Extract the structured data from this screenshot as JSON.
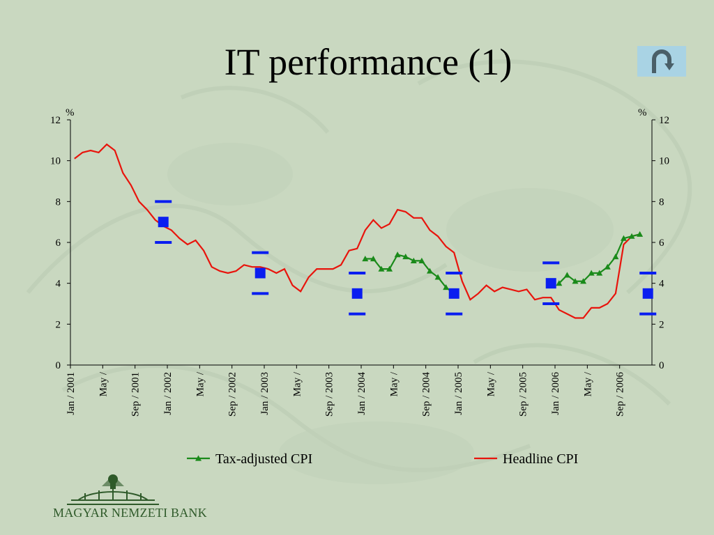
{
  "slide": {
    "title": "IT performance (1)",
    "back_icon": "u-turn-arrow-icon",
    "bank_name": "MAGYAR NEMZETI BANK",
    "background_color": "#c9d8c0",
    "button_color": "#a9d3e4"
  },
  "chart_data": {
    "type": "line",
    "title": "",
    "xlabel": "",
    "ylabel_left": "%",
    "ylabel_right": "%",
    "ylim": [
      0,
      12
    ],
    "y_ticks": [
      0,
      2,
      4,
      6,
      8,
      10,
      12
    ],
    "x_range_months": {
      "start": "2001-01",
      "end": "2006-12"
    },
    "x_tick_labels": [
      {
        "month": "2001-01",
        "label": "Jan / 2001"
      },
      {
        "month": "2001-05",
        "label": "May /"
      },
      {
        "month": "2001-09",
        "label": "Sep / 2001"
      },
      {
        "month": "2002-01",
        "label": "Jan / 2002"
      },
      {
        "month": "2002-05",
        "label": "May /"
      },
      {
        "month": "2002-09",
        "label": "Sep / 2002"
      },
      {
        "month": "2003-01",
        "label": "Jan / 2003"
      },
      {
        "month": "2003-05",
        "label": "May /"
      },
      {
        "month": "2003-09",
        "label": "Sep / 2003"
      },
      {
        "month": "2004-01",
        "label": "Jan / 2004"
      },
      {
        "month": "2004-05",
        "label": "May /"
      },
      {
        "month": "2004-09",
        "label": "Sep / 2004"
      },
      {
        "month": "2005-01",
        "label": "Jan / 2005"
      },
      {
        "month": "2005-05",
        "label": "May /"
      },
      {
        "month": "2005-09",
        "label": "Sep / 2005"
      },
      {
        "month": "2006-01",
        "label": "Jan / 2006"
      },
      {
        "month": "2006-05",
        "label": "May /"
      },
      {
        "month": "2006-09",
        "label": "Sep / 2006"
      }
    ],
    "grid": false,
    "legend_position": "bottom",
    "series": [
      {
        "name": "Tax-adjusted CPI",
        "color": "#1a8a1a",
        "marker": "triangle",
        "points": [
          [
            "2004-01",
            5.2
          ],
          [
            "2004-02",
            5.2
          ],
          [
            "2004-03",
            4.7
          ],
          [
            "2004-04",
            4.7
          ],
          [
            "2004-05",
            5.4
          ],
          [
            "2004-06",
            5.3
          ],
          [
            "2004-07",
            5.1
          ],
          [
            "2004-08",
            5.1
          ],
          [
            "2004-09",
            4.6
          ],
          [
            "2004-10",
            4.3
          ],
          [
            "2004-11",
            3.8
          ],
          [
            "2004-12",
            3.5
          ],
          [
            "2006-01",
            4.0
          ],
          [
            "2006-02",
            4.4
          ],
          [
            "2006-03",
            4.1
          ],
          [
            "2006-04",
            4.1
          ],
          [
            "2006-05",
            4.5
          ],
          [
            "2006-06",
            4.5
          ],
          [
            "2006-07",
            4.8
          ],
          [
            "2006-08",
            5.3
          ],
          [
            "2006-09",
            6.2
          ],
          [
            "2006-10",
            6.3
          ],
          [
            "2006-11",
            6.4
          ]
        ]
      },
      {
        "name": "Headline CPI",
        "color": "#e8140c",
        "marker": "none",
        "points": [
          [
            "2001-01",
            10.1
          ],
          [
            "2001-02",
            10.4
          ],
          [
            "2001-03",
            10.5
          ],
          [
            "2001-04",
            10.4
          ],
          [
            "2001-05",
            10.8
          ],
          [
            "2001-06",
            10.5
          ],
          [
            "2001-07",
            9.4
          ],
          [
            "2001-08",
            8.8
          ],
          [
            "2001-09",
            8.0
          ],
          [
            "2001-10",
            7.6
          ],
          [
            "2001-11",
            7.1
          ],
          [
            "2001-12",
            6.8
          ],
          [
            "2002-01",
            6.6
          ],
          [
            "2002-02",
            6.2
          ],
          [
            "2002-03",
            5.9
          ],
          [
            "2002-04",
            6.1
          ],
          [
            "2002-05",
            5.6
          ],
          [
            "2002-06",
            4.8
          ],
          [
            "2002-07",
            4.6
          ],
          [
            "2002-08",
            4.5
          ],
          [
            "2002-09",
            4.6
          ],
          [
            "2002-10",
            4.9
          ],
          [
            "2002-11",
            4.8
          ],
          [
            "2002-12",
            4.8
          ],
          [
            "2003-01",
            4.7
          ],
          [
            "2003-02",
            4.5
          ],
          [
            "2003-03",
            4.7
          ],
          [
            "2003-04",
            3.9
          ],
          [
            "2003-05",
            3.6
          ],
          [
            "2003-06",
            4.3
          ],
          [
            "2003-07",
            4.7
          ],
          [
            "2003-08",
            4.7
          ],
          [
            "2003-09",
            4.7
          ],
          [
            "2003-10",
            4.9
          ],
          [
            "2003-11",
            5.6
          ],
          [
            "2003-12",
            5.7
          ],
          [
            "2004-01",
            6.6
          ],
          [
            "2004-02",
            7.1
          ],
          [
            "2004-03",
            6.7
          ],
          [
            "2004-04",
            6.9
          ],
          [
            "2004-05",
            7.6
          ],
          [
            "2004-06",
            7.5
          ],
          [
            "2004-07",
            7.2
          ],
          [
            "2004-08",
            7.2
          ],
          [
            "2004-09",
            6.6
          ],
          [
            "2004-10",
            6.3
          ],
          [
            "2004-11",
            5.8
          ],
          [
            "2004-12",
            5.5
          ],
          [
            "2005-01",
            4.1
          ],
          [
            "2005-02",
            3.2
          ],
          [
            "2005-03",
            3.5
          ],
          [
            "2005-04",
            3.9
          ],
          [
            "2005-05",
            3.6
          ],
          [
            "2005-06",
            3.8
          ],
          [
            "2005-07",
            3.7
          ],
          [
            "2005-08",
            3.6
          ],
          [
            "2005-09",
            3.7
          ],
          [
            "2005-10",
            3.2
          ],
          [
            "2005-11",
            3.3
          ],
          [
            "2005-12",
            3.3
          ],
          [
            "2006-01",
            2.7
          ],
          [
            "2006-02",
            2.5
          ],
          [
            "2006-03",
            2.3
          ],
          [
            "2006-04",
            2.3
          ],
          [
            "2006-05",
            2.8
          ],
          [
            "2006-06",
            2.8
          ],
          [
            "2006-07",
            3.0
          ],
          [
            "2006-08",
            3.5
          ],
          [
            "2006-09",
            5.9
          ],
          [
            "2006-10",
            6.3
          ],
          [
            "2006-11",
            6.4
          ]
        ]
      }
    ],
    "targets": {
      "color": "#0a1ef0",
      "items": [
        {
          "month": "2001-12",
          "center": 7.0,
          "upper": 8.0,
          "lower": 6.0
        },
        {
          "month": "2002-12",
          "center": 4.5,
          "upper": 5.5,
          "lower": 3.5
        },
        {
          "month": "2003-12",
          "center": 3.5,
          "upper": 4.5,
          "lower": 2.5
        },
        {
          "month": "2004-12",
          "center": 3.5,
          "upper": 4.5,
          "lower": 2.5
        },
        {
          "month": "2005-12",
          "center": 4.0,
          "upper": 5.0,
          "lower": 3.0
        },
        {
          "month": "2006-12",
          "center": 3.5,
          "upper": 4.5,
          "lower": 2.5
        }
      ]
    }
  }
}
